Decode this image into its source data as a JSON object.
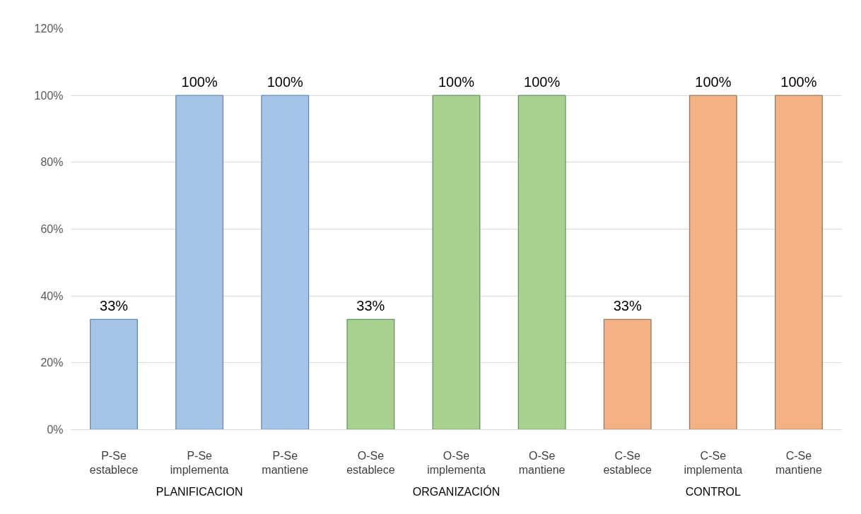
{
  "chart_data": {
    "type": "bar",
    "categories": [
      "P-Se establece",
      "P-Se implementa",
      "P-Se mantiene",
      "O-Se establece",
      "O-Se implementa",
      "O-Se mantiene",
      "C-Se establece",
      "C-Se implementa",
      "C-Se mantiene"
    ],
    "values": [
      33,
      100,
      100,
      33,
      100,
      100,
      33,
      100,
      100
    ],
    "colors": [
      "#a6c4e8",
      "#a6c4e8",
      "#a6c4e8",
      "#a9d18e",
      "#a9d18e",
      "#a9d18e",
      "#f4b183",
      "#f4b183",
      "#f4b183"
    ],
    "ylim": [
      0,
      120
    ],
    "yticks": [
      {
        "value": 0,
        "label": "0%"
      },
      {
        "value": 20,
        "label": "20%"
      },
      {
        "value": 40,
        "label": "40%"
      },
      {
        "value": 60,
        "label": "60%"
      },
      {
        "value": 80,
        "label": "80%"
      },
      {
        "value": 100,
        "label": "100%"
      },
      {
        "value": 120,
        "label": "120%"
      }
    ],
    "grid": "y",
    "value_labels": [
      "33%",
      "100%",
      "100%",
      "33%",
      "100%",
      "100%",
      "33%",
      "100%",
      "100%"
    ],
    "annotations": [
      "PLANIFICACION",
      "ORGANIZACIÓN",
      "CONTROL"
    ]
  }
}
